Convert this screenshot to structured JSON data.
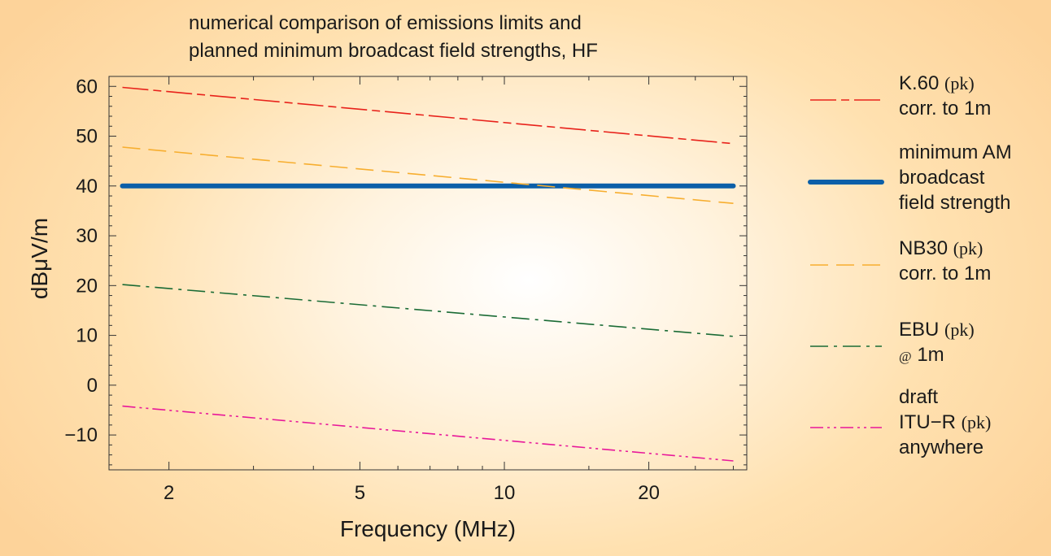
{
  "chart_data": {
    "type": "line",
    "title": [
      "numerical comparison of emissions limits and",
      "planned minimum broadcast field strengths, HF"
    ],
    "xlabel": "Frequency (MHz)",
    "ylabel": "dBμV/m",
    "xscale": "log",
    "xlim": [
      1.5,
      32
    ],
    "ylim": [
      -17,
      62
    ],
    "xticks": [
      2,
      5,
      10,
      20
    ],
    "xtick_labels": [
      "2",
      "5",
      "10",
      "20"
    ],
    "yticks": [
      -10,
      0,
      10,
      20,
      30,
      40,
      50,
      60
    ],
    "ytick_labels": [
      "−10",
      "0",
      "10",
      "20",
      "30",
      "40",
      "50",
      "60"
    ],
    "legend_position": "right",
    "series": [
      {
        "name": "K.60 (pk) corr. to 1m",
        "legend_lines": [
          [
            {
              "t": "K.60 ",
              "c": ""
            },
            {
              "t": "(pk)",
              "c": "legend-small"
            }
          ],
          [
            {
              "t": "corr. to 1m",
              "c": ""
            }
          ]
        ],
        "x": [
          1.6,
          30
        ],
        "y": [
          59.8,
          48.5
        ],
        "color": "#e8221b",
        "stroke_width": 1.6,
        "dash": "long-dash"
      },
      {
        "name": "minimum AM broadcast field strength",
        "legend_lines": [
          [
            {
              "t": "minimum AM",
              "c": ""
            }
          ],
          [
            {
              "t": "broadcast",
              "c": ""
            }
          ],
          [
            {
              "t": "field strength",
              "c": ""
            }
          ]
        ],
        "x": [
          1.6,
          30
        ],
        "y": [
          40,
          40
        ],
        "color": "#0b5fa8",
        "stroke_width": 6,
        "dash": "solid"
      },
      {
        "name": "NB30 (pk) corr. to 1m",
        "legend_lines": [
          [
            {
              "t": "NB30 ",
              "c": ""
            },
            {
              "t": "(pk)",
              "c": "legend-small"
            }
          ],
          [
            {
              "t": "corr. to 1m",
              "c": ""
            }
          ]
        ],
        "x": [
          1.6,
          30
        ],
        "y": [
          47.8,
          36.5
        ],
        "color": "#f7ae2f",
        "stroke_width": 1.6,
        "dash": "dash"
      },
      {
        "name": "EBU (pk) @ 1m",
        "legend_lines": [
          [
            {
              "t": "EBU ",
              "c": ""
            },
            {
              "t": "(pk)",
              "c": "legend-small"
            }
          ],
          [
            {
              "t": "@",
              "c": "legend-tiny"
            },
            {
              "t": " 1m",
              "c": ""
            }
          ]
        ],
        "x": [
          1.6,
          30
        ],
        "y": [
          20.2,
          9.8
        ],
        "color": "#1a6b35",
        "stroke_width": 1.6,
        "dash": "dash-dot"
      },
      {
        "name": "draft ITU-R (pk) anywhere",
        "legend_lines": [
          [
            {
              "t": "draft",
              "c": ""
            }
          ],
          [
            {
              "t": "ITU−R ",
              "c": ""
            },
            {
              "t": "(pk)",
              "c": "legend-small"
            }
          ],
          [
            {
              "t": "anywhere",
              "c": ""
            }
          ]
        ],
        "x": [
          1.6,
          30
        ],
        "y": [
          -4.2,
          -15.2
        ],
        "color": "#e8189a",
        "stroke_width": 1.6,
        "dash": "dash-dot-dot"
      }
    ]
  }
}
